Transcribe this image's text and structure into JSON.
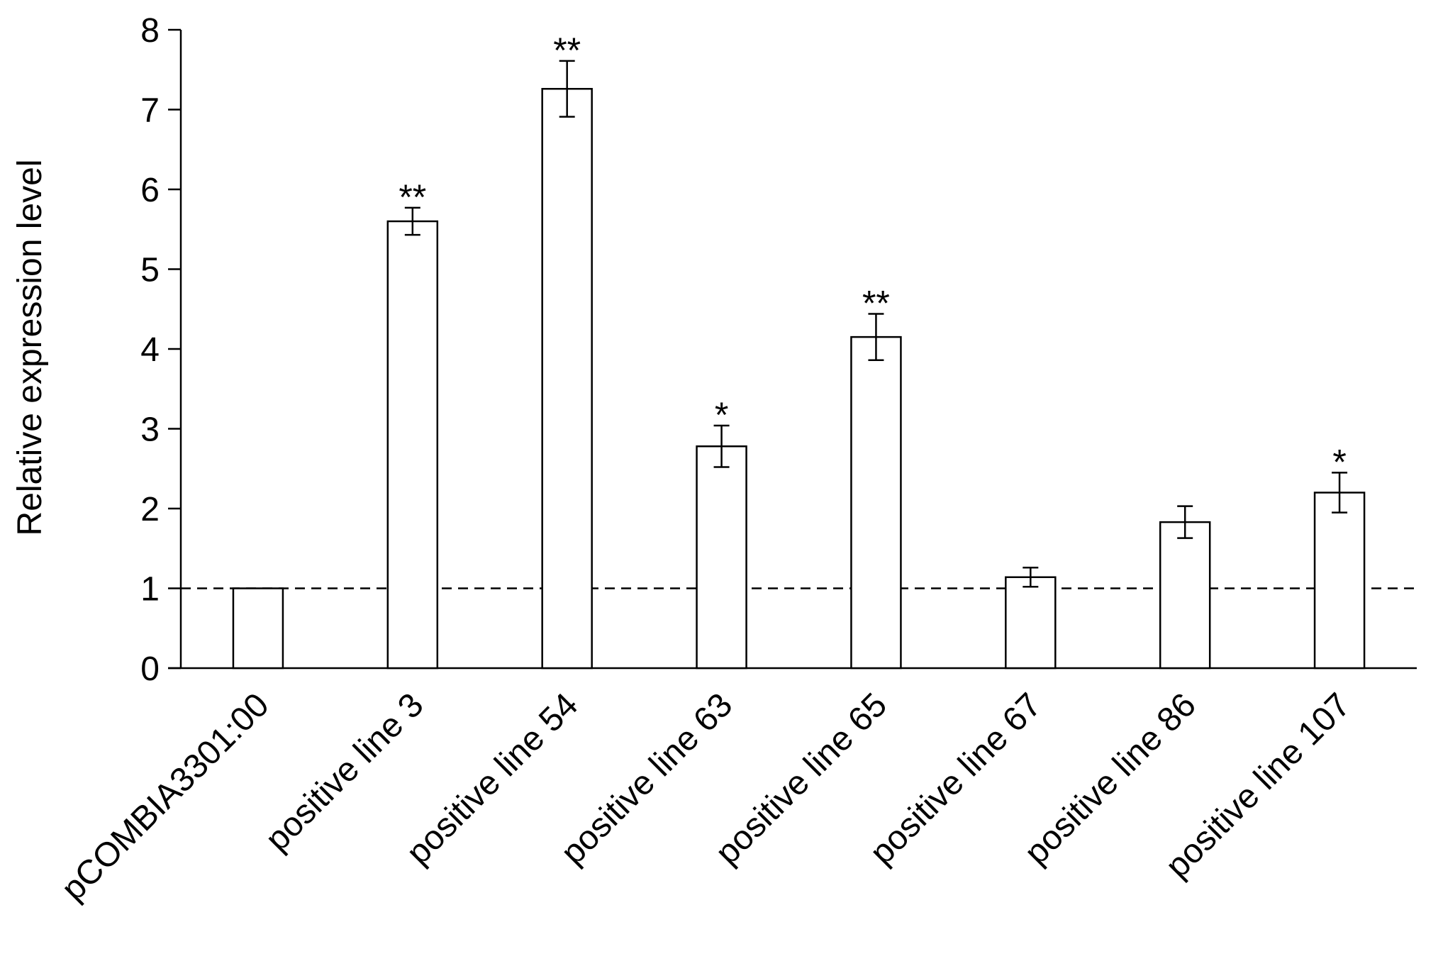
{
  "chart_data": {
    "type": "bar",
    "ylabel": "Relative expression level",
    "xlabel": "",
    "ylim": [
      0,
      8
    ],
    "yticks": [
      0,
      1,
      2,
      3,
      4,
      5,
      6,
      7,
      8
    ],
    "grid": false,
    "legend": "none",
    "reference_line": {
      "value": 1,
      "style": "dashed"
    },
    "categories": [
      "pCOMBIA3301:00",
      "positive line 3",
      "positive line 54",
      "positive line 63",
      "positive line 65",
      "positive line 67",
      "positive line 86",
      "positive line 107"
    ],
    "values": [
      1.0,
      5.6,
      7.26,
      2.78,
      4.15,
      1.14,
      1.83,
      2.2
    ],
    "errors": [
      0,
      0.17,
      0.35,
      0.26,
      0.29,
      0.12,
      0.2,
      0.25
    ],
    "significance": [
      "",
      "**",
      "**",
      "*",
      "**",
      "",
      "",
      "*"
    ],
    "colors": {
      "bar_fill": "#ffffff",
      "bar_stroke": "#000000",
      "axis": "#000000"
    }
  }
}
